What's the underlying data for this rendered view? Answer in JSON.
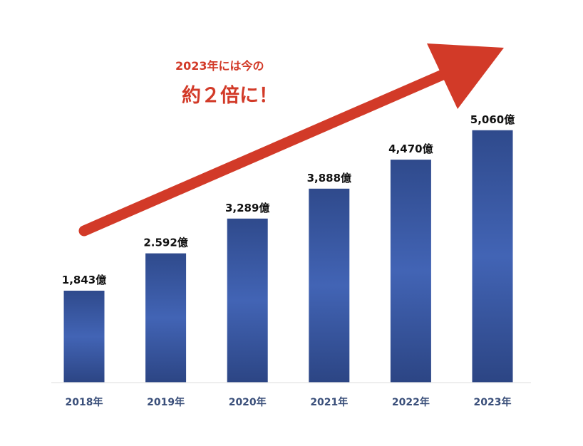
{
  "chart_data": {
    "type": "bar",
    "title": "",
    "xlabel": "",
    "ylabel": "",
    "categories": [
      "2018年",
      "2019年",
      "2020年",
      "2021年",
      "2022年",
      "2023年"
    ],
    "values": [
      1843,
      2592,
      3289,
      3888,
      4470,
      5060
    ],
    "data_labels": [
      "1,843億",
      "2.592億",
      "3,289億",
      "3,888億",
      "4,470億",
      "5,060億"
    ],
    "ylim": [
      0,
      5500
    ],
    "grid": false,
    "legend": "none",
    "colors": {
      "bar_top": "#2f4a8c",
      "bar_mid": "#4063b3",
      "bar_bottom": "#2f4a8c",
      "arrow": "#d23a28",
      "tick_text": "#3a4f7a"
    }
  },
  "annotation": {
    "line1": "2023年には今の",
    "line2": "約２倍に！"
  }
}
